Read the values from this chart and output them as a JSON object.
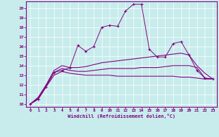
{
  "xlabel": "Windchill (Refroidissement éolien,°C)",
  "xlim": [
    -0.5,
    23.5
  ],
  "ylim": [
    9.7,
    20.7
  ],
  "yticks": [
    10,
    11,
    12,
    13,
    14,
    15,
    16,
    17,
    18,
    19,
    20
  ],
  "xticks": [
    0,
    1,
    2,
    3,
    4,
    5,
    6,
    7,
    8,
    9,
    10,
    11,
    12,
    13,
    14,
    15,
    16,
    17,
    18,
    19,
    20,
    21,
    22,
    23
  ],
  "bg_color": "#c8ecec",
  "line_color": "#800080",
  "grid_color": "#b0d8d8",
  "lines": [
    {
      "x": [
        0,
        1,
        2,
        3,
        4,
        5,
        6,
        7,
        8,
        9,
        10,
        11,
        12,
        13,
        14,
        15,
        16,
        17,
        18,
        19,
        20,
        21,
        22,
        23
      ],
      "y": [
        10.0,
        10.5,
        11.8,
        13.3,
        13.5,
        13.8,
        16.1,
        15.5,
        16.0,
        18.0,
        18.2,
        18.1,
        19.7,
        20.4,
        20.4,
        15.7,
        14.9,
        14.9,
        16.3,
        16.5,
        15.1,
        13.5,
        12.7,
        12.6
      ],
      "marker": "+"
    },
    {
      "x": [
        0,
        1,
        2,
        3,
        4,
        5,
        6,
        7,
        8,
        9,
        10,
        11,
        12,
        13,
        14,
        15,
        16,
        17,
        18,
        19,
        20,
        21,
        22,
        23
      ],
      "y": [
        10.0,
        10.5,
        11.8,
        13.0,
        13.4,
        13.2,
        13.1,
        13.0,
        13.0,
        13.0,
        13.0,
        12.9,
        12.9,
        12.9,
        12.9,
        12.9,
        12.9,
        12.9,
        12.9,
        12.8,
        12.8,
        12.7,
        12.6,
        12.6
      ],
      "marker": null
    },
    {
      "x": [
        0,
        1,
        2,
        3,
        4,
        5,
        6,
        7,
        8,
        9,
        10,
        11,
        12,
        13,
        14,
        15,
        16,
        17,
        18,
        19,
        20,
        21,
        22,
        23
      ],
      "y": [
        10.0,
        10.6,
        11.9,
        13.3,
        13.7,
        13.5,
        13.4,
        13.4,
        13.5,
        13.6,
        13.7,
        13.7,
        13.7,
        13.7,
        13.8,
        13.8,
        13.8,
        13.9,
        14.0,
        14.0,
        14.0,
        13.8,
        12.7,
        12.6
      ],
      "marker": null
    },
    {
      "x": [
        0,
        1,
        2,
        3,
        4,
        5,
        6,
        7,
        8,
        9,
        10,
        11,
        12,
        13,
        14,
        15,
        16,
        17,
        18,
        19,
        20,
        21,
        22,
        23
      ],
      "y": [
        10.0,
        10.7,
        12.0,
        13.5,
        14.0,
        13.8,
        13.8,
        13.9,
        14.1,
        14.3,
        14.4,
        14.5,
        14.6,
        14.7,
        14.8,
        14.9,
        15.0,
        15.1,
        15.2,
        15.3,
        15.1,
        14.0,
        13.2,
        12.6
      ],
      "marker": null
    }
  ]
}
